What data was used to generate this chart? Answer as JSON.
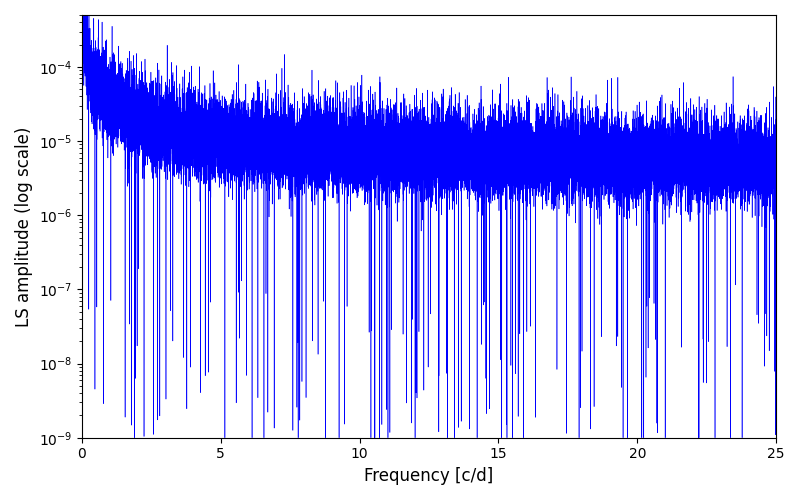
{
  "line_color": "#0000ff",
  "xlabel": "Frequency [c/d]",
  "ylabel": "LS amplitude (log scale)",
  "xlim": [
    0,
    25
  ],
  "ylim_log": [
    -9,
    -3.3
  ],
  "freq_min": 0.0,
  "freq_max": 25.0,
  "n_points": 25000,
  "seed": 123,
  "linewidth": 0.4,
  "figsize": [
    8.0,
    5.0
  ],
  "dpi": 100,
  "background_color": "#ffffff"
}
